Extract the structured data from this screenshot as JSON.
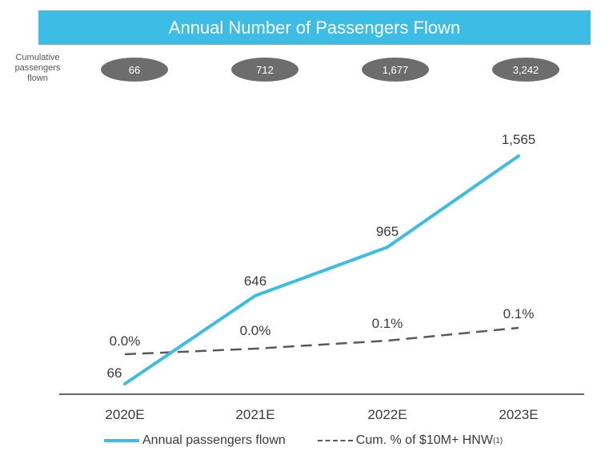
{
  "banner": {
    "title": "Annual Number of Passengers Flown"
  },
  "cumulative": {
    "label": "Cumulative passengers flown",
    "values": [
      "66",
      "712",
      "1,677",
      "3,242"
    ]
  },
  "colors": {
    "accent": "#3dbde6",
    "pill": "#6d6d6d",
    "dashed": "#595959",
    "axis": "#333333"
  },
  "chart_data": {
    "type": "line",
    "title": "Annual Number of Passengers Flown",
    "categories": [
      "2020E",
      "2021E",
      "2022E",
      "2023E"
    ],
    "series": [
      {
        "name": "Annual passengers flown",
        "values": [
          66,
          646,
          965,
          1565
        ],
        "labels": [
          "66",
          "646",
          "965",
          "1,565"
        ],
        "style": "solid"
      },
      {
        "name": "Cum. % of $10M+ HNW",
        "values": [
          0.0,
          0.0,
          0.1,
          0.1
        ],
        "labels": [
          "0.0%",
          "0.0%",
          "0.1%",
          "0.1%"
        ],
        "style": "dashed"
      }
    ],
    "ylim": [
      0,
      1700
    ]
  },
  "legend": {
    "solid_label": "Annual passengers flown",
    "dashed_label": "Cum. % of $10M+ HNW",
    "dashed_footnote": "(1)"
  }
}
